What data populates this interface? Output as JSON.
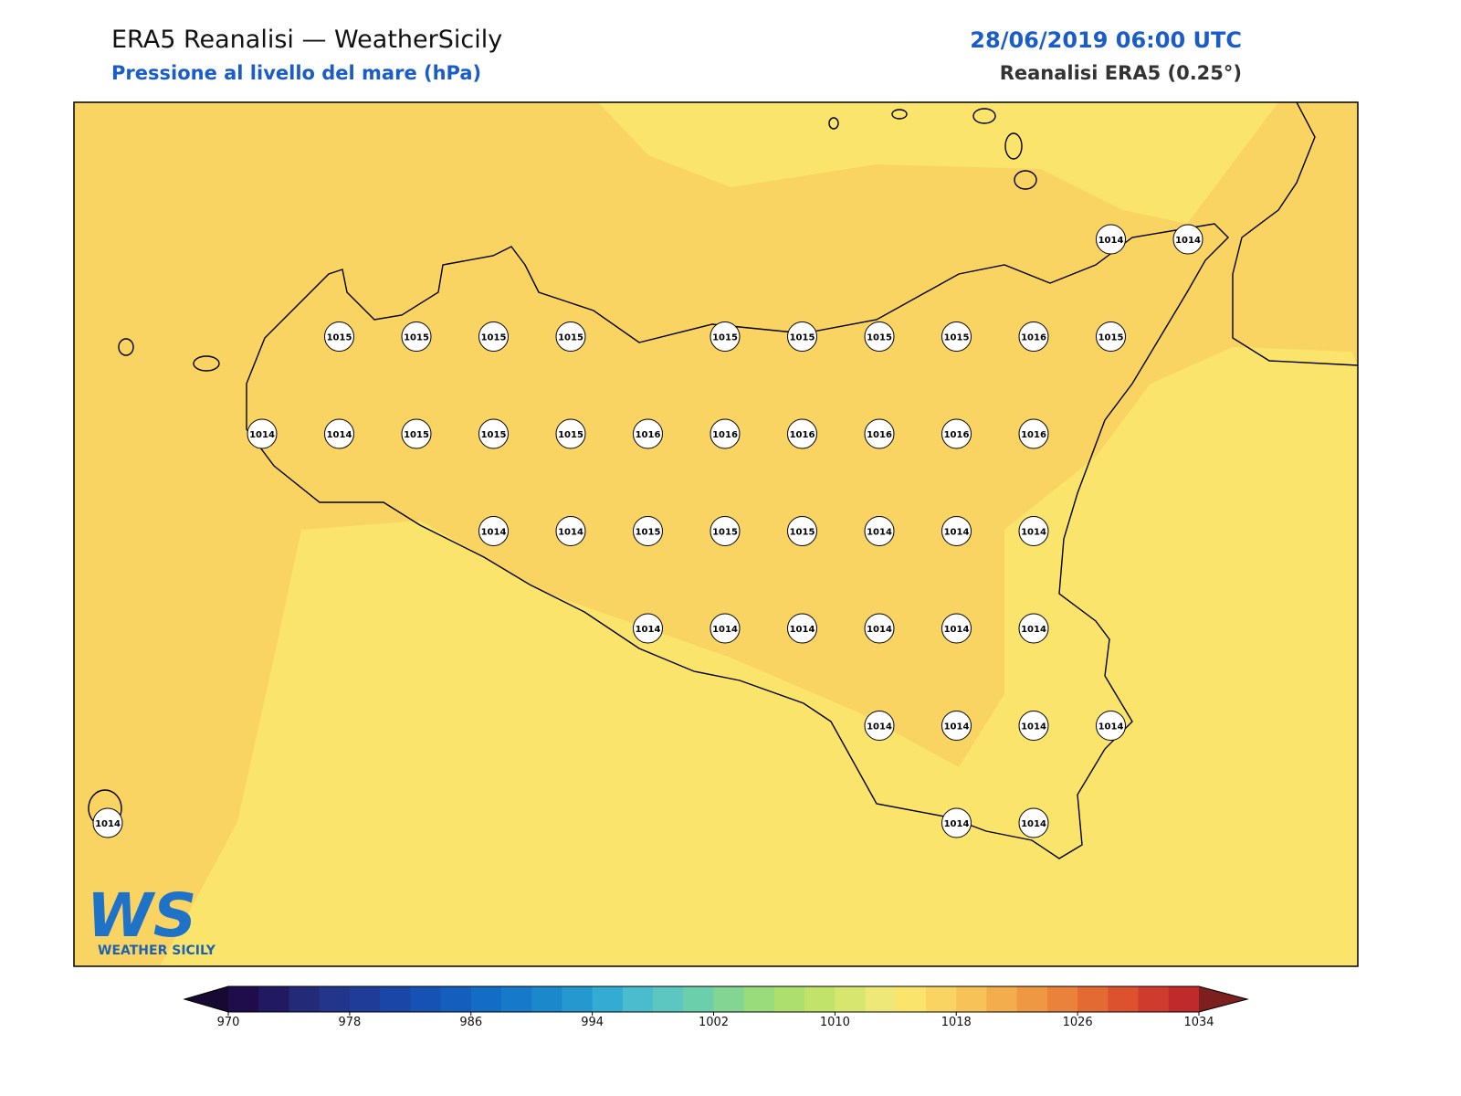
{
  "header": {
    "title": "ERA5 Reanalisi — WeatherSicily",
    "subtitle": "Pressione al livello del mare (hPa)",
    "date": "28/06/2019 06:00 UTC",
    "source": "Reanalisi ERA5 (0.25°)"
  },
  "logo": {
    "mark": "WS",
    "name": "WEATHER SICILY"
  },
  "map": {
    "grid": [
      [
        null,
        null,
        null,
        null,
        null,
        null,
        null,
        null,
        null,
        null,
        null,
        null,
        null,
        1014,
        1014
      ],
      [
        null,
        null,
        null,
        1015,
        1015,
        1015,
        1015,
        null,
        1015,
        1015,
        1015,
        1015,
        1016,
        1015,
        null
      ],
      [
        null,
        null,
        1014,
        1014,
        1015,
        1015,
        1015,
        1016,
        1016,
        1016,
        1016,
        1016,
        1016,
        null,
        null
      ],
      [
        null,
        null,
        null,
        null,
        null,
        1014,
        1014,
        1015,
        1015,
        1015,
        1014,
        1014,
        1014,
        null,
        null
      ],
      [
        null,
        null,
        null,
        null,
        null,
        null,
        null,
        1014,
        1014,
        1014,
        1014,
        1014,
        1014,
        null,
        null
      ],
      [
        null,
        null,
        null,
        null,
        null,
        null,
        null,
        null,
        null,
        null,
        1014,
        1014,
        1014,
        1014,
        null
      ],
      [
        1014,
        null,
        null,
        null,
        null,
        null,
        null,
        null,
        null,
        null,
        null,
        1014,
        1014,
        null,
        null
      ]
    ]
  },
  "colorbar": {
    "lim": [
      970,
      1034
    ],
    "ticks": [
      970,
      978,
      986,
      994,
      1002,
      1010,
      1018,
      1026,
      1034
    ],
    "under": "#160a33",
    "over": "#7d1f1f",
    "colors": [
      "#1e0d4a",
      "#211a63",
      "#232a78",
      "#23358a",
      "#1f3c98",
      "#1a46a8",
      "#1552b3",
      "#145fbd",
      "#136dc5",
      "#1679c9",
      "#1c88cc",
      "#2598cf",
      "#34abd2",
      "#4bbccd",
      "#5cc6c0",
      "#6ccfac",
      "#82d592",
      "#98dc7c",
      "#acdf6e",
      "#c2e369",
      "#d7e66e",
      "#eee879",
      "#fbe46c",
      "#fad462",
      "#f7c257",
      "#f3ad4d",
      "#ef9843",
      "#ea823b",
      "#e46a34",
      "#dc522f",
      "#cf3b2c",
      "#c02a2a"
    ]
  }
}
